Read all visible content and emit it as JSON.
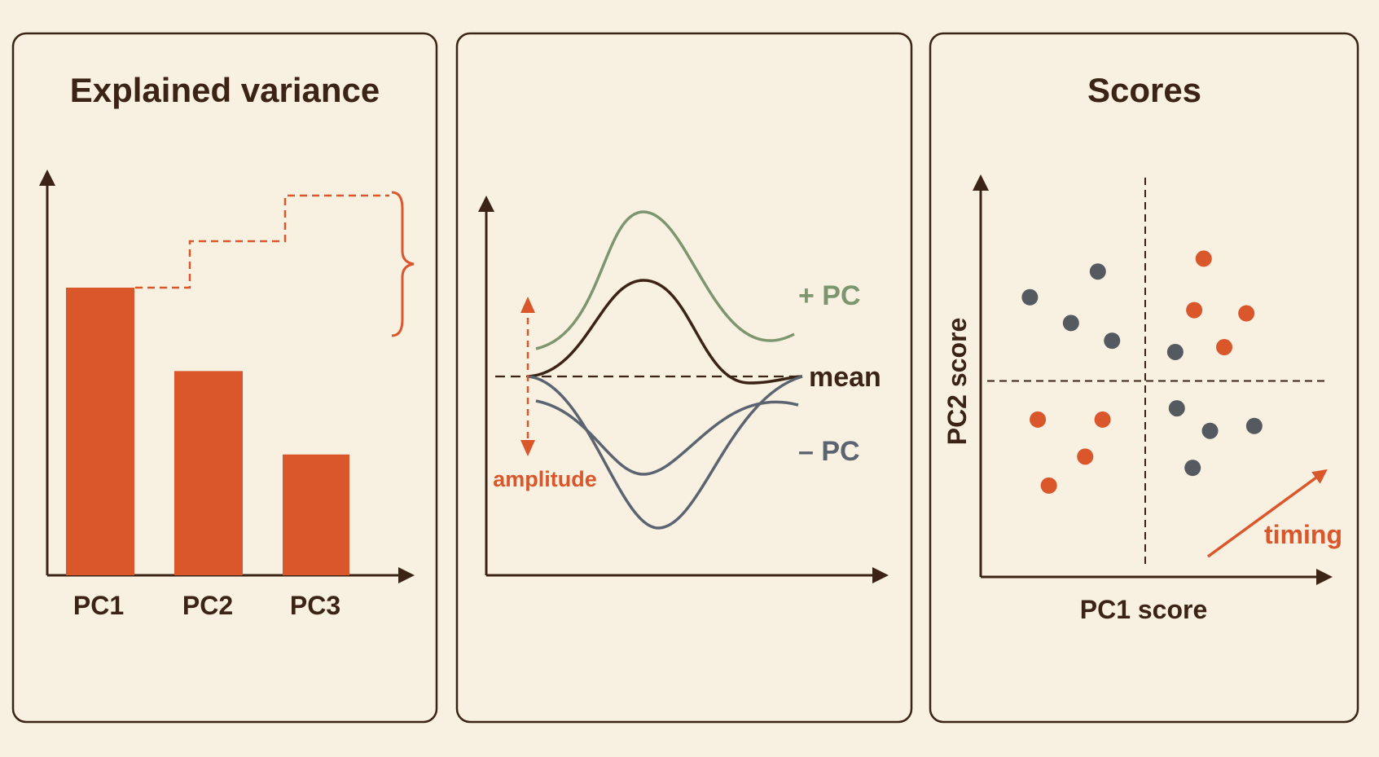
{
  "colors": {
    "background": "#f8f0e0",
    "panel_border": "#3b2416",
    "ink": "#3b2416",
    "accent": "#d9572b",
    "pc_plus": "#7e9670",
    "pc_minus": "#5b6470",
    "dot_gray": "#555a60"
  },
  "panels": {
    "variance": {
      "title": "Explained variance",
      "bars": [
        {
          "label": "PC1",
          "value": 100
        },
        {
          "label": "PC2",
          "value": 71
        },
        {
          "label": "PC3",
          "value": 42
        }
      ]
    },
    "modes": {
      "labels": {
        "plus": "+ PC",
        "mean": "mean",
        "minus": "– PC",
        "amplitude": "amplitude"
      }
    },
    "scores": {
      "title": "Scores",
      "xlabel": "PC1 score",
      "ylabel": "PC2 score",
      "arrow_label": "timing"
    }
  },
  "chart_data": {
    "type": "scatter",
    "xlabel": "PC1 score",
    "ylabel": "PC2 score",
    "xlim": [
      -1,
      1
    ],
    "ylim": [
      -1,
      1
    ],
    "series": [
      {
        "color": "#555a60",
        "points": [
          [
            -0.3,
            0.68
          ],
          [
            -0.73,
            0.52
          ],
          [
            -0.47,
            0.36
          ],
          [
            -0.21,
            0.25
          ],
          [
            0.19,
            0.18
          ],
          [
            0.2,
            -0.17
          ],
          [
            0.41,
            -0.31
          ],
          [
            0.69,
            -0.28
          ],
          [
            0.3,
            -0.54
          ]
        ]
      },
      {
        "color": "#d9572b",
        "points": [
          [
            0.37,
            0.76
          ],
          [
            0.31,
            0.44
          ],
          [
            0.64,
            0.42
          ],
          [
            0.5,
            0.21
          ],
          [
            -0.68,
            -0.24
          ],
          [
            -0.27,
            -0.24
          ],
          [
            -0.38,
            -0.47
          ],
          [
            -0.61,
            -0.65
          ]
        ]
      }
    ]
  }
}
